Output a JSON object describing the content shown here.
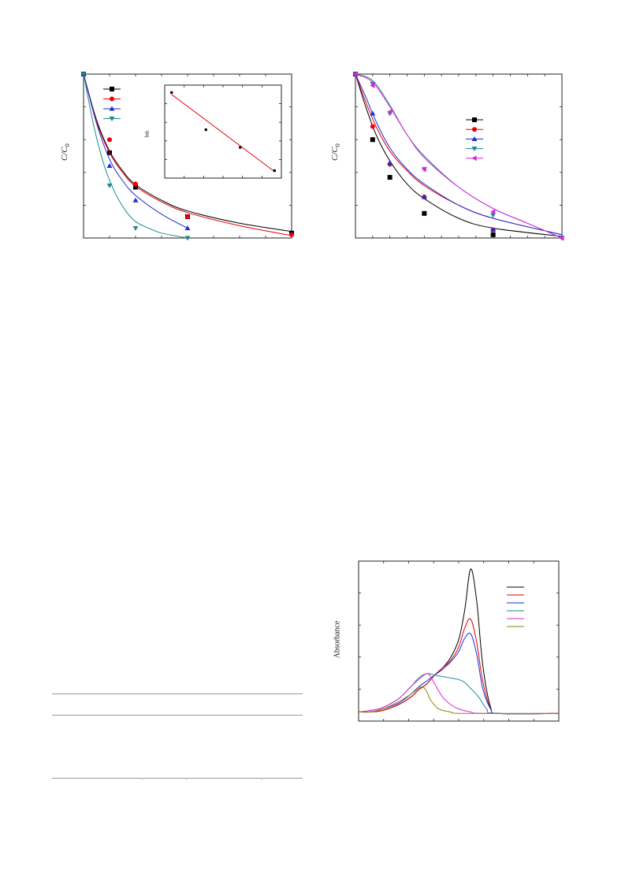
{
  "chart_data": [
    {
      "type": "scatter",
      "ylabel": "C/C0",
      "x": [
        0,
        1,
        2,
        4,
        8
      ],
      "ylim": [
        0,
        1
      ],
      "series": [
        {
          "marker": "square",
          "color": "#000000",
          "points": [
            [
              0,
              1
            ],
            [
              1,
              0.52
            ],
            [
              2,
              0.31
            ],
            [
              4,
              0.13
            ],
            [
              8,
              0.03
            ]
          ],
          "fit": [
            [
              0,
              1
            ],
            [
              0.5,
              0.72
            ],
            [
              1,
              0.53
            ],
            [
              1.5,
              0.41
            ],
            [
              2,
              0.325
            ],
            [
              3,
              0.23
            ],
            [
              4,
              0.165
            ],
            [
              6,
              0.09
            ],
            [
              8,
              0.04
            ]
          ]
        },
        {
          "marker": "circle",
          "color": "#e8000b",
          "points": [
            [
              0,
              1
            ],
            [
              1,
              0.6
            ],
            [
              2,
              0.33
            ],
            [
              4,
              0.13
            ],
            [
              8,
              0.02
            ]
          ],
          "fit": [
            [
              0,
              1
            ],
            [
              0.5,
              0.71
            ],
            [
              1,
              0.52
            ],
            [
              1.5,
              0.4
            ],
            [
              2,
              0.315
            ],
            [
              3,
              0.22
            ],
            [
              4,
              0.155
            ],
            [
              6,
              0.075
            ],
            [
              8,
              0.015
            ]
          ]
        },
        {
          "marker": "triangle-up",
          "color": "#1a2ed8",
          "points": [
            [
              0,
              1
            ],
            [
              1,
              0.44
            ],
            [
              2,
              0.23
            ],
            [
              4,
              0.06
            ]
          ],
          "fit": [
            [
              0,
              1
            ],
            [
              0.5,
              0.7
            ],
            [
              1,
              0.48
            ],
            [
              1.5,
              0.35
            ],
            [
              2,
              0.26
            ],
            [
              3,
              0.145
            ],
            [
              4,
              0.06
            ]
          ]
        },
        {
          "marker": "triangle-down",
          "color": "#1f8a8a",
          "points": [
            [
              0,
              1
            ],
            [
              1,
              0.32
            ],
            [
              2,
              0.06
            ],
            [
              4,
              0
            ]
          ],
          "fit": [
            [
              0,
              1
            ],
            [
              0.4,
              0.68
            ],
            [
              0.8,
              0.44
            ],
            [
              1.2,
              0.28
            ],
            [
              1.6,
              0.17
            ],
            [
              2,
              0.1
            ],
            [
              2.5,
              0.06
            ],
            [
              3,
              0.03
            ],
            [
              4,
              0
            ]
          ]
        }
      ],
      "legend": "top-left",
      "inset": {
        "ylabel": "lnk",
        "points": [
          [
            1,
            0.92
          ],
          [
            2,
            0.52
          ],
          [
            3,
            0.33
          ],
          [
            4,
            0.08
          ]
        ],
        "fit": [
          [
            1,
            0.9
          ],
          [
            4,
            0.07
          ]
        ]
      }
    },
    {
      "type": "scatter",
      "ylabel": "C/C0",
      "x": [
        0,
        0.5,
        1,
        2,
        4,
        6
      ],
      "ylim": [
        0,
        1
      ],
      "series": [
        {
          "marker": "square",
          "color": "#000000",
          "points": [
            [
              0,
              1
            ],
            [
              0.5,
              0.6
            ],
            [
              1,
              0.37
            ],
            [
              2,
              0.15
            ],
            [
              4,
              0.02
            ]
          ],
          "fit": [
            [
              0,
              1
            ],
            [
              0.3,
              0.8
            ],
            [
              0.6,
              0.63
            ],
            [
              1,
              0.47
            ],
            [
              1.5,
              0.33
            ],
            [
              2,
              0.24
            ],
            [
              3,
              0.12
            ],
            [
              4,
              0.06
            ],
            [
              6,
              0.01
            ]
          ]
        },
        {
          "marker": "circle",
          "color": "#e8000b",
          "points": [
            [
              0,
              1
            ],
            [
              0.5,
              0.68
            ],
            [
              1,
              0.45
            ],
            [
              2,
              0.25
            ],
            [
              4,
              0.05
            ]
          ],
          "fit": [
            [
              0,
              1
            ],
            [
              0.3,
              0.83
            ],
            [
              0.6,
              0.68
            ],
            [
              1,
              0.53
            ],
            [
              1.5,
              0.41
            ],
            [
              2,
              0.32
            ],
            [
              3,
              0.2
            ],
            [
              4,
              0.12
            ],
            [
              6,
              0.02
            ]
          ]
        },
        {
          "marker": "triangle-up",
          "color": "#1a2ed8",
          "points": [
            [
              0,
              1
            ],
            [
              0.5,
              0.76
            ],
            [
              1,
              0.46
            ],
            [
              2,
              0.25
            ],
            [
              4,
              0.05
            ]
          ],
          "fit": [
            [
              0,
              1
            ],
            [
              0.3,
              0.86
            ],
            [
              0.6,
              0.71
            ],
            [
              1,
              0.55
            ],
            [
              1.5,
              0.42
            ],
            [
              2,
              0.33
            ],
            [
              3,
              0.2
            ],
            [
              4,
              0.12
            ],
            [
              6,
              0.02
            ]
          ]
        },
        {
          "marker": "triangle-down",
          "color": "#1f8a8a",
          "points": [
            [
              0,
              1
            ],
            [
              0.5,
              0.94
            ],
            [
              1,
              0.76
            ],
            [
              2,
              0.42
            ],
            [
              4,
              0.14
            ],
            [
              6,
              0
            ]
          ],
          "fit": [
            [
              0,
              1
            ],
            [
              0.5,
              0.96
            ],
            [
              1,
              0.81
            ],
            [
              1.5,
              0.63
            ],
            [
              2,
              0.5
            ],
            [
              3,
              0.31
            ],
            [
              4,
              0.18
            ],
            [
              5,
              0.09
            ],
            [
              6,
              0
            ]
          ]
        },
        {
          "marker": "triangle-left",
          "color": "#e020e0",
          "points": [
            [
              0,
              1
            ],
            [
              0.5,
              0.93
            ],
            [
              1,
              0.77
            ],
            [
              2,
              0.42
            ],
            [
              4,
              0.16
            ],
            [
              6,
              0
            ]
          ],
          "fit": [
            [
              0,
              1
            ],
            [
              0.5,
              0.95
            ],
            [
              1,
              0.8
            ],
            [
              1.5,
              0.63
            ],
            [
              2,
              0.49
            ],
            [
              3,
              0.31
            ],
            [
              4,
              0.18
            ],
            [
              5,
              0.09
            ],
            [
              6,
              0
            ]
          ]
        }
      ],
      "legend": "right"
    },
    {
      "type": "line",
      "ylabel": "Absorbance",
      "ylim": [
        0,
        1
      ],
      "series": [
        {
          "color": "#000000",
          "points": [
            [
              0,
              0.03
            ],
            [
              0.06,
              0.03
            ],
            [
              0.12,
              0.04
            ],
            [
              0.2,
              0.08
            ],
            [
              0.26,
              0.13
            ],
            [
              0.3,
              0.18
            ],
            [
              0.34,
              0.22
            ],
            [
              0.38,
              0.28
            ],
            [
              0.42,
              0.33
            ],
            [
              0.46,
              0.4
            ],
            [
              0.5,
              0.52
            ],
            [
              0.53,
              0.72
            ],
            [
              0.56,
              1.0
            ],
            [
              0.59,
              0.78
            ],
            [
              0.62,
              0.35
            ],
            [
              0.66,
              0.06
            ],
            [
              0.7,
              0.02
            ],
            [
              1,
              0.02
            ]
          ]
        },
        {
          "color": "#e8000b",
          "points": [
            [
              0,
              0.03
            ],
            [
              0.06,
              0.03
            ],
            [
              0.12,
              0.04
            ],
            [
              0.2,
              0.08
            ],
            [
              0.26,
              0.13
            ],
            [
              0.3,
              0.18
            ],
            [
              0.34,
              0.22
            ],
            [
              0.38,
              0.28
            ],
            [
              0.42,
              0.33
            ],
            [
              0.46,
              0.38
            ],
            [
              0.5,
              0.47
            ],
            [
              0.53,
              0.6
            ],
            [
              0.56,
              0.66
            ],
            [
              0.59,
              0.5
            ],
            [
              0.62,
              0.24
            ],
            [
              0.66,
              0.05
            ],
            [
              0.7,
              0.02
            ],
            [
              1,
              0.02
            ]
          ]
        },
        {
          "color": "#1a2ed8",
          "points": [
            [
              0,
              0.03
            ],
            [
              0.06,
              0.03
            ],
            [
              0.12,
              0.05
            ],
            [
              0.2,
              0.09
            ],
            [
              0.26,
              0.15
            ],
            [
              0.3,
              0.2
            ],
            [
              0.34,
              0.24
            ],
            [
              0.38,
              0.28
            ],
            [
              0.42,
              0.32
            ],
            [
              0.46,
              0.37
            ],
            [
              0.5,
              0.44
            ],
            [
              0.53,
              0.53
            ],
            [
              0.56,
              0.56
            ],
            [
              0.59,
              0.42
            ],
            [
              0.62,
              0.19
            ],
            [
              0.66,
              0.05
            ],
            [
              0.7,
              0.02
            ],
            [
              1,
              0.02
            ]
          ]
        },
        {
          "color": "#1f8a8a",
          "points": [
            [
              0,
              0.03
            ],
            [
              0.06,
              0.04
            ],
            [
              0.12,
              0.06
            ],
            [
              0.2,
              0.12
            ],
            [
              0.26,
              0.2
            ],
            [
              0.3,
              0.26
            ],
            [
              0.34,
              0.29
            ],
            [
              0.38,
              0.28
            ],
            [
              0.42,
              0.27
            ],
            [
              0.46,
              0.26
            ],
            [
              0.5,
              0.25
            ],
            [
              0.53,
              0.23
            ],
            [
              0.56,
              0.19
            ],
            [
              0.6,
              0.13
            ],
            [
              0.64,
              0.05
            ],
            [
              0.68,
              0.02
            ],
            [
              1,
              0.02
            ]
          ]
        },
        {
          "color": "#e020e0",
          "points": [
            [
              0,
              0.03
            ],
            [
              0.06,
              0.04
            ],
            [
              0.12,
              0.06
            ],
            [
              0.2,
              0.12
            ],
            [
              0.26,
              0.2
            ],
            [
              0.3,
              0.25
            ],
            [
              0.34,
              0.29
            ],
            [
              0.36,
              0.27
            ],
            [
              0.38,
              0.22
            ],
            [
              0.42,
              0.13
            ],
            [
              0.46,
              0.08
            ],
            [
              0.5,
              0.05
            ],
            [
              0.56,
              0.03
            ],
            [
              0.62,
              0.02
            ],
            [
              1,
              0.02
            ]
          ]
        },
        {
          "color": "#8a8a00",
          "points": [
            [
              0,
              0.03
            ],
            [
              0.06,
              0.03
            ],
            [
              0.12,
              0.05
            ],
            [
              0.2,
              0.1
            ],
            [
              0.26,
              0.15
            ],
            [
              0.3,
              0.19
            ],
            [
              0.32,
              0.2
            ],
            [
              0.34,
              0.17
            ],
            [
              0.36,
              0.11
            ],
            [
              0.4,
              0.05
            ],
            [
              0.46,
              0.03
            ],
            [
              0.52,
              0.02
            ],
            [
              1,
              0.02
            ]
          ]
        }
      ],
      "legend": "top-right"
    }
  ]
}
